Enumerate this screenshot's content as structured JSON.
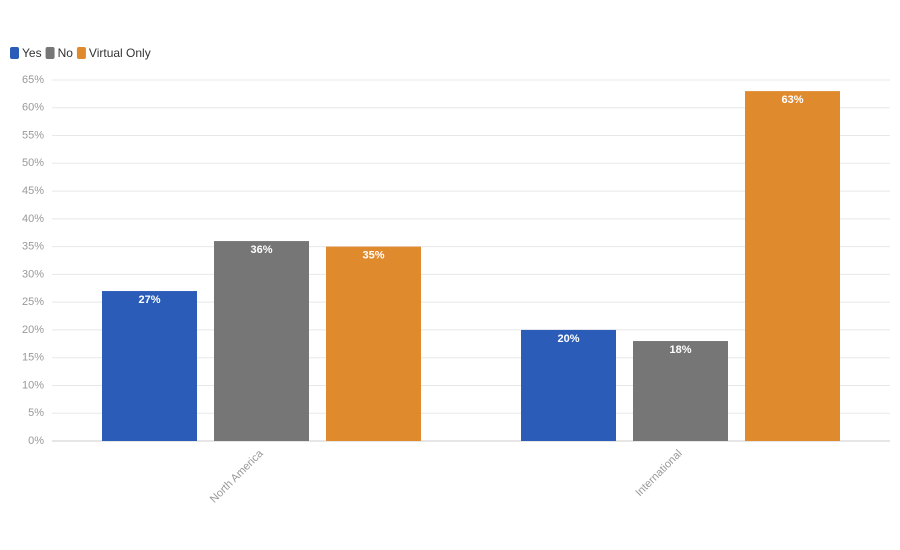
{
  "chart_data": {
    "type": "bar",
    "categories": [
      "North America",
      "International"
    ],
    "series": [
      {
        "name": "Yes",
        "color": "#2a5cb8",
        "values": [
          27,
          20
        ],
        "value_labels": [
          "27%",
          "20%"
        ]
      },
      {
        "name": "No",
        "color": "#767676",
        "values": [
          36,
          18
        ],
        "value_labels": [
          "36%",
          "18%"
        ]
      },
      {
        "name": "Virtual Only",
        "color": "#e08a2e",
        "values": [
          35,
          63
        ],
        "value_labels": [
          "35%",
          "63%"
        ]
      }
    ],
    "ylim": [
      0,
      65
    ],
    "yticks": [
      {
        "value": 0,
        "label": "0%"
      },
      {
        "value": 5,
        "label": "5%"
      },
      {
        "value": 10,
        "label": "10%"
      },
      {
        "value": 15,
        "label": "15%"
      },
      {
        "value": 20,
        "label": "20%"
      },
      {
        "value": 25,
        "label": "25%"
      },
      {
        "value": 30,
        "label": "30%"
      },
      {
        "value": 35,
        "label": "35%"
      },
      {
        "value": 40,
        "label": "40%"
      },
      {
        "value": 45,
        "label": "45%"
      },
      {
        "value": 50,
        "label": "50%"
      },
      {
        "value": 55,
        "label": "55%"
      },
      {
        "value": 60,
        "label": "60%"
      },
      {
        "value": 65,
        "label": "65%"
      }
    ],
    "grid": true,
    "legend": "top-left"
  }
}
